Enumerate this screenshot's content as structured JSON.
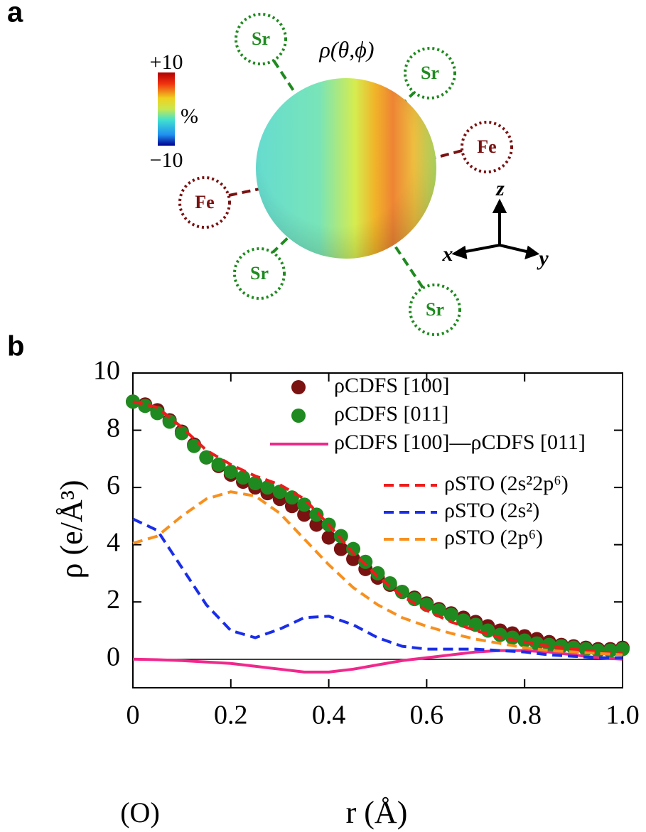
{
  "panel_a": {
    "label": "a",
    "title": "ρ(θ,ϕ)",
    "colorbar": {
      "max": "+10",
      "unit": "%",
      "min": "−10"
    },
    "atoms": [
      "Sr",
      "Sr",
      "Fe",
      "Fe",
      "Sr",
      "Sr"
    ],
    "axes": {
      "x": "x",
      "y": "y",
      "z": "z"
    }
  },
  "panel_b_label": "b",
  "chart_data": {
    "type": "line",
    "xlabel": "r (Å)",
    "ylabel": "ρ (e/Å³)",
    "x_origin_label": "(O)",
    "xlim": [
      0,
      1
    ],
    "ylim": [
      -1,
      10
    ],
    "xticks": [
      0,
      0.2,
      0.4,
      0.6,
      0.8,
      {
        "value": 1,
        "label": "1.0"
      }
    ],
    "yticks": [
      0,
      2,
      4,
      6,
      8,
      10
    ],
    "series": [
      {
        "name": "ρCDFS [100]",
        "color": "#7a1212",
        "style": "markers",
        "x": [
          0,
          0.025,
          0.05,
          0.075,
          0.1,
          0.125,
          0.15,
          0.175,
          0.2,
          0.225,
          0.25,
          0.275,
          0.3,
          0.325,
          0.35,
          0.375,
          0.4,
          0.425,
          0.45,
          0.475,
          0.5,
          0.525,
          0.55,
          0.575,
          0.6,
          0.625,
          0.65,
          0.675,
          0.7,
          0.725,
          0.75,
          0.775,
          0.8,
          0.825,
          0.85,
          0.875,
          0.9,
          0.925,
          0.95,
          0.975,
          1
        ],
        "values": [
          9.0,
          8.9,
          8.7,
          8.35,
          7.95,
          7.5,
          7.05,
          6.75,
          6.45,
          6.2,
          6.0,
          5.8,
          5.6,
          5.35,
          5.05,
          4.7,
          4.25,
          3.85,
          3.5,
          3.15,
          2.85,
          2.6,
          2.35,
          2.15,
          1.95,
          1.75,
          1.6,
          1.45,
          1.3,
          1.15,
          1.0,
          0.9,
          0.8,
          0.7,
          0.6,
          0.5,
          0.45,
          0.4,
          0.35,
          0.35,
          0.4
        ]
      },
      {
        "name": "ρCDFS [011]",
        "color": "#1f8a1f",
        "style": "markers",
        "x": [
          0,
          0.025,
          0.05,
          0.075,
          0.1,
          0.125,
          0.15,
          0.175,
          0.2,
          0.225,
          0.25,
          0.275,
          0.3,
          0.325,
          0.35,
          0.375,
          0.4,
          0.425,
          0.45,
          0.475,
          0.5,
          0.525,
          0.55,
          0.575,
          0.6,
          0.625,
          0.65,
          0.675,
          0.7,
          0.725,
          0.75,
          0.775,
          0.8,
          0.825,
          0.85,
          0.875,
          0.9,
          0.925,
          0.95,
          0.975,
          1
        ],
        "values": [
          9.0,
          8.85,
          8.6,
          8.3,
          7.9,
          7.45,
          7.05,
          6.8,
          6.55,
          6.35,
          6.15,
          6.0,
          5.85,
          5.65,
          5.4,
          5.05,
          4.7,
          4.3,
          3.85,
          3.4,
          3.0,
          2.65,
          2.35,
          2.1,
          1.9,
          1.7,
          1.55,
          1.35,
          1.2,
          1.0,
          0.85,
          0.75,
          0.65,
          0.55,
          0.5,
          0.45,
          0.4,
          0.35,
          0.3,
          0.3,
          0.35
        ]
      },
      {
        "name": "ρCDFS [100]—ρCDFS [011]",
        "color": "#f0288c",
        "style": "solid",
        "x": [
          0,
          0.05,
          0.1,
          0.15,
          0.2,
          0.25,
          0.3,
          0.35,
          0.4,
          0.45,
          0.5,
          0.55,
          0.6,
          0.65,
          0.7,
          0.75,
          0.8,
          0.85,
          0.9,
          0.95,
          1
        ],
        "values": [
          0,
          -0.02,
          -0.05,
          -0.1,
          -0.15,
          -0.25,
          -0.35,
          -0.45,
          -0.45,
          -0.35,
          -0.2,
          -0.05,
          0.05,
          0.15,
          0.25,
          0.3,
          0.3,
          0.25,
          0.15,
          0.05,
          0
        ]
      },
      {
        "name": "ρSTO (2s²2p⁶)",
        "color": "#ee1c1c",
        "style": "dashed",
        "x": [
          0,
          0.05,
          0.1,
          0.15,
          0.2,
          0.25,
          0.3,
          0.35,
          0.4,
          0.45,
          0.5,
          0.55,
          0.6,
          0.65,
          0.7,
          0.75,
          0.8,
          0.85,
          0.9,
          0.95,
          1
        ],
        "values": [
          9.0,
          8.8,
          8.1,
          7.3,
          6.8,
          6.4,
          6.1,
          5.6,
          4.7,
          3.7,
          2.9,
          2.2,
          1.7,
          1.3,
          1.0,
          0.75,
          0.6,
          0.45,
          0.35,
          0.25,
          0.2
        ]
      },
      {
        "name": "ρSTO (2s²)",
        "color": "#1a2ee8",
        "style": "dashed",
        "x": [
          0,
          0.05,
          0.1,
          0.15,
          0.2,
          0.25,
          0.3,
          0.35,
          0.4,
          0.45,
          0.5,
          0.55,
          0.6,
          0.65,
          0.7,
          0.75,
          0.8,
          0.85,
          0.9,
          0.95,
          1
        ],
        "values": [
          4.9,
          4.5,
          3.2,
          1.9,
          1.0,
          0.75,
          1.05,
          1.45,
          1.5,
          1.2,
          0.75,
          0.45,
          0.35,
          0.35,
          0.35,
          0.3,
          0.25,
          0.15,
          0.1,
          0.05,
          0.05
        ]
      },
      {
        "name": "ρSTO (2p⁶)",
        "color": "#f7901e",
        "style": "dashed",
        "x": [
          0,
          0.05,
          0.1,
          0.15,
          0.2,
          0.25,
          0.3,
          0.35,
          0.4,
          0.45,
          0.5,
          0.55,
          0.6,
          0.65,
          0.7,
          0.75,
          0.8,
          0.85,
          0.9,
          0.95,
          1
        ],
        "values": [
          4.05,
          4.3,
          5.0,
          5.6,
          5.85,
          5.7,
          5.1,
          4.2,
          3.3,
          2.5,
          1.9,
          1.45,
          1.15,
          0.9,
          0.7,
          0.55,
          0.4,
          0.3,
          0.25,
          0.2,
          0.15
        ]
      }
    ]
  }
}
